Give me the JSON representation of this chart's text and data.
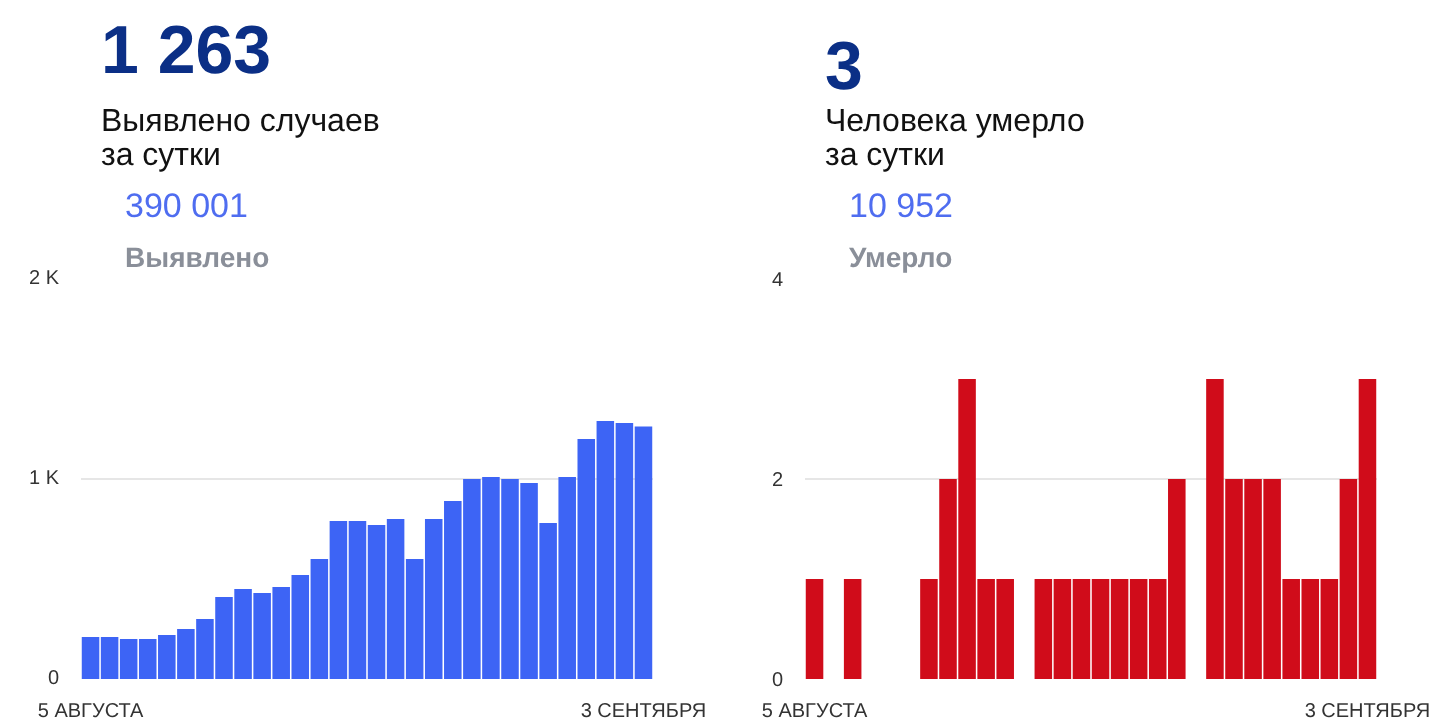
{
  "chart_data": [
    {
      "type": "bar",
      "title": "1 263",
      "subtitle": "Выявлено случаев\nза сутки",
      "annotations": [
        "390 001",
        "Выявлено"
      ],
      "categories": [
        "5 АВГУСТА",
        null,
        null,
        null,
        null,
        null,
        null,
        null,
        null,
        null,
        null,
        null,
        null,
        null,
        null,
        null,
        null,
        null,
        null,
        null,
        null,
        null,
        null,
        null,
        null,
        null,
        null,
        null,
        null,
        "3 СЕНТЯБРЯ"
      ],
      "values": [
        210,
        210,
        200,
        200,
        220,
        250,
        300,
        410,
        450,
        430,
        460,
        520,
        600,
        790,
        790,
        770,
        800,
        600,
        800,
        890,
        1000,
        1010,
        1000,
        980,
        780,
        1010,
        1200,
        1290,
        1280,
        1263
      ],
      "color": "#3d64f5",
      "ylim": [
        0,
        2000
      ],
      "yticks": [
        0,
        {
          "value": 1000,
          "label": "1 K"
        },
        {
          "value": 2000,
          "label": "2 K"
        }
      ],
      "grid": "y"
    },
    {
      "type": "bar",
      "title": "3",
      "subtitle": "Человека умерло\nза сутки",
      "annotations": [
        "10 952",
        "Умерло"
      ],
      "categories": [
        "5 АВГУСТА",
        null,
        null,
        null,
        null,
        null,
        null,
        null,
        null,
        null,
        null,
        null,
        null,
        null,
        null,
        null,
        null,
        null,
        null,
        null,
        null,
        null,
        null,
        null,
        null,
        null,
        null,
        null,
        null,
        "3 СЕНТЯБРЯ"
      ],
      "values": [
        1,
        0,
        1,
        0,
        0,
        0,
        1,
        2,
        3,
        1,
        1,
        0,
        1,
        1,
        1,
        1,
        1,
        1,
        1,
        2,
        0,
        3,
        2,
        2,
        2,
        1,
        1,
        1,
        2,
        3
      ],
      "color": "#d00c1a",
      "ylim": [
        0,
        4
      ],
      "yticks": [
        0,
        2,
        4
      ],
      "grid": "y"
    }
  ]
}
